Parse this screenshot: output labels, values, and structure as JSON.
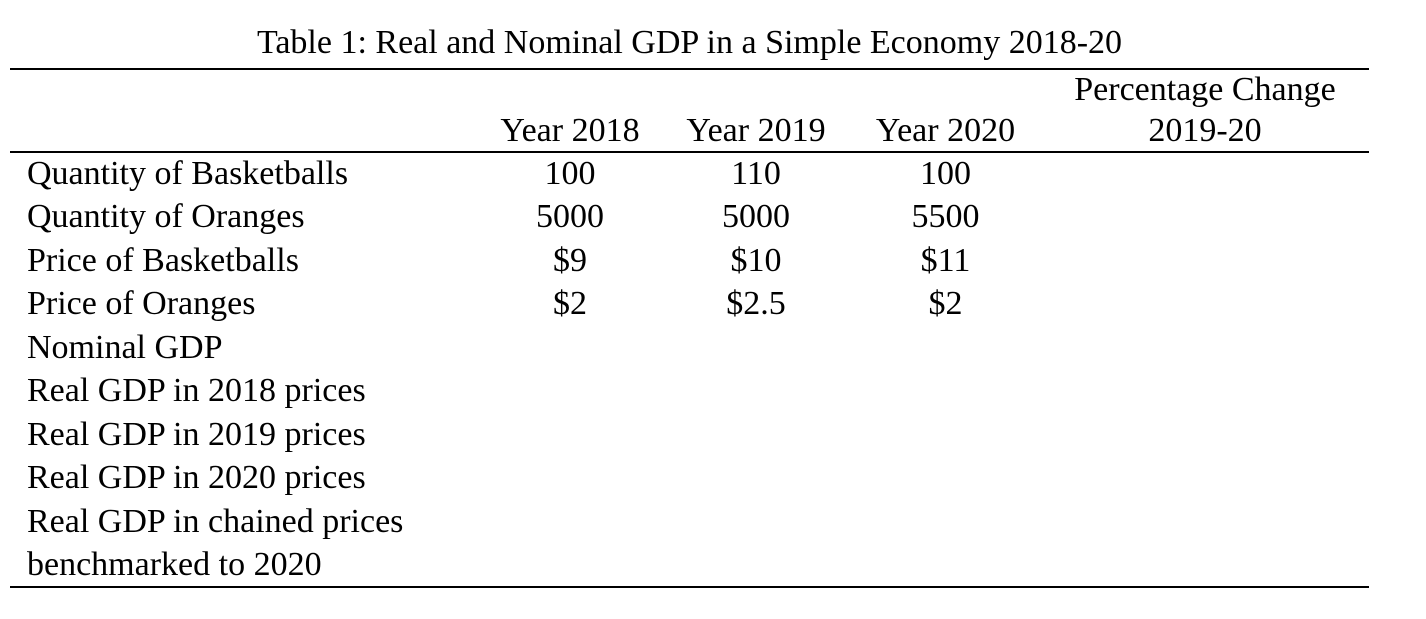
{
  "table": {
    "caption": "Table 1: Real and Nominal GDP in a Simple Economy 2018-20",
    "header": {
      "group": "Percentage Change",
      "cols": [
        "",
        "Year 2018",
        "Year 2019",
        "Year 2020",
        "2019-20"
      ]
    },
    "rows": [
      {
        "label": "Quantity of Basketballs",
        "y2018": "100",
        "y2019": "110",
        "y2020": "100",
        "pct": ""
      },
      {
        "label": "Quantity of Oranges",
        "y2018": "5000",
        "y2019": "5000",
        "y2020": "5500",
        "pct": ""
      },
      {
        "label": "Price of Basketballs",
        "y2018": "$9",
        "y2019": "$10",
        "y2020": "$11",
        "pct": ""
      },
      {
        "label": "Price of Oranges",
        "y2018": "$2",
        "y2019": "$2.5",
        "y2020": "$2",
        "pct": ""
      },
      {
        "label": "Nominal GDP",
        "y2018": "",
        "y2019": "",
        "y2020": "",
        "pct": ""
      },
      {
        "label": "Real GDP in 2018 prices",
        "y2018": "",
        "y2019": "",
        "y2020": "",
        "pct": ""
      },
      {
        "label": "Real GDP in 2019 prices",
        "y2018": "",
        "y2019": "",
        "y2020": "",
        "pct": ""
      },
      {
        "label": "Real GDP in 2020 prices",
        "y2018": "",
        "y2019": "",
        "y2020": "",
        "pct": ""
      },
      {
        "label": "Real GDP in chained prices",
        "y2018": "",
        "y2019": "",
        "y2020": "",
        "pct": ""
      },
      {
        "label": "benchmarked to 2020",
        "y2018": "",
        "y2019": "",
        "y2020": "",
        "pct": ""
      }
    ]
  }
}
